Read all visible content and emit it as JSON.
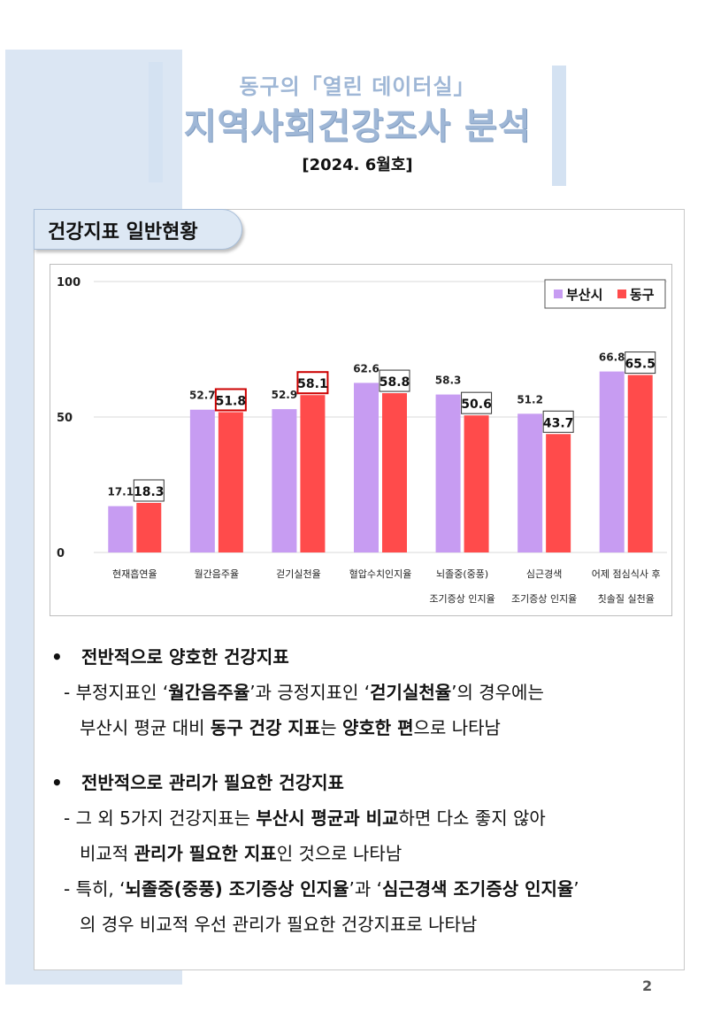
{
  "header": {
    "subtitle": "동구의「열린 데이터실」",
    "title": "지역사회건강조사 분석",
    "issue": "[2024. 6월호]"
  },
  "section": {
    "title": "건강지표 일반현황"
  },
  "chart_data": {
    "type": "bar",
    "categories": [
      [
        "현재흡연율"
      ],
      [
        "월간음주율"
      ],
      [
        "걷기실천율"
      ],
      [
        "혈압수치인지율"
      ],
      [
        "뇌졸중(중풍)",
        "조기증상 인지율"
      ],
      [
        "심근경색",
        "조기증상 인지율"
      ],
      [
        "어제 점심식사 후",
        "칫솔질 실천율"
      ]
    ],
    "series": [
      {
        "name": "부산시",
        "values": [
          17.1,
          52.7,
          52.9,
          62.6,
          58.3,
          51.2,
          66.8
        ],
        "color": "#c79cf2"
      },
      {
        "name": "동구",
        "values": [
          18.3,
          51.8,
          58.1,
          58.8,
          50.6,
          43.7,
          65.5
        ],
        "color": "#ff4b4b"
      }
    ],
    "highlighted_dong_gu_categories": [
      1,
      2
    ],
    "highlight_color": "#cc0000",
    "ylim": [
      0,
      100
    ],
    "yticks": [
      "0",
      "50",
      "100"
    ],
    "legend": "top-right",
    "grid": true
  },
  "bullets": [
    {
      "heading": "전반적으로 양호한 건강지표",
      "items": [
        {
          "lines": [
            [
              {
                "t": "- 부정지표인 ‘"
              },
              {
                "t": "월간음주율",
                "b": true
              },
              {
                "t": "’과 긍정지표인 ‘"
              },
              {
                "t": "걷기실천율",
                "b": true
              },
              {
                "t": "’의 경우에는"
              }
            ],
            [
              {
                "t": "부산시 평균 대비 "
              },
              {
                "t": "동구 건강 지표",
                "b": true
              },
              {
                "t": "는 "
              },
              {
                "t": "양호한 편",
                "b": true
              },
              {
                "t": "으로 나타남"
              }
            ]
          ]
        }
      ]
    },
    {
      "heading": "전반적으로 관리가 필요한 건강지표",
      "items": [
        {
          "lines": [
            [
              {
                "t": "- 그 외 5가지 건강지표는 "
              },
              {
                "t": "부산시 평균과 비교",
                "b": true
              },
              {
                "t": "하면 다소 좋지 않아"
              }
            ],
            [
              {
                "t": "비교적 "
              },
              {
                "t": "관리가 필요한 지표",
                "b": true
              },
              {
                "t": "인 것으로 나타남"
              }
            ]
          ]
        },
        {
          "lines": [
            [
              {
                "t": "- 특히, ‘"
              },
              {
                "t": "뇌졸중(중풍) 조기증상 인지율",
                "b": true
              },
              {
                "t": "’과 ‘"
              },
              {
                "t": "심근경색 조기증상 인지율",
                "b": true
              },
              {
                "t": "’"
              }
            ],
            [
              {
                "t": "의 경우 비교적 우선 관리가 필요한 건강지표로 나타남"
              }
            ]
          ]
        }
      ]
    }
  ],
  "page_number": "2"
}
